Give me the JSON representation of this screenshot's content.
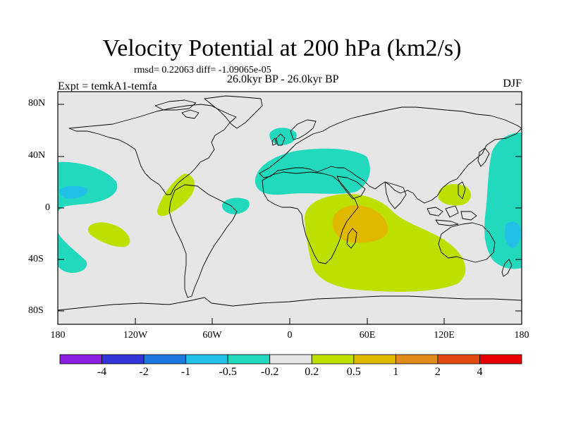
{
  "title": "Velocity Potential at 200 hPa (km2/s)",
  "stats": "rmsd= 0.22063  diff= -1.09065e-05",
  "period": "26.0kyr BP - 26.0kyr BP",
  "experiment": "Expt = temkA1-temfa",
  "season": "DJF",
  "y_axis_labels": [
    "80N",
    "40N",
    "0",
    "40S",
    "80S"
  ],
  "x_axis_labels": [
    "180",
    "120W",
    "60W",
    "0",
    "60E",
    "120E",
    "180"
  ],
  "colorbar": {
    "labels": [
      "-4",
      "-2",
      "-1",
      "-0.5",
      "-0.2",
      "0.2",
      "0.5",
      "1",
      "2",
      "4"
    ],
    "colors": [
      "#8a1fe0",
      "#3333d6",
      "#1a78e0",
      "#22c0e6",
      "#22d9bd",
      "#e6e6e6",
      "#bde000",
      "#e0b800",
      "#e08a1a",
      "#e04a10",
      "#e60000"
    ]
  },
  "map": {
    "projection": "cylindrical-equidistant",
    "lon_range": [
      -180,
      180
    ],
    "lat_range": [
      -90,
      90
    ],
    "ocean_color": "#e6e6e6",
    "coastline_color": "#000000"
  }
}
